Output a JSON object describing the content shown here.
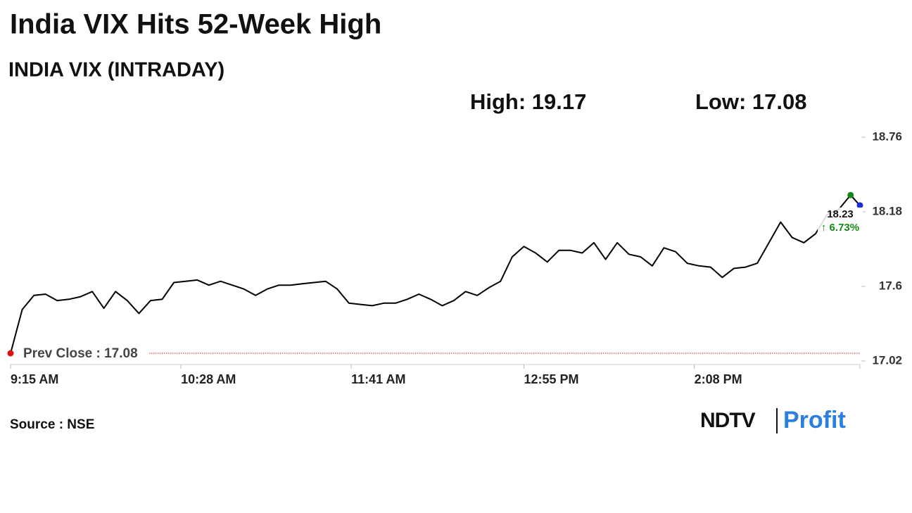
{
  "chart_data": {
    "type": "line",
    "title": "India VIX Hits 52-Week High",
    "subtitle": "INDIA VIX (INTRADAY)",
    "high_label": "High: 19.17",
    "low_label": "Low: 17.08",
    "prev_close": 17.08,
    "prev_close_label": "Prev Close : 17.08",
    "prev_close_color": "#d42020",
    "change_label": "↑ 6.73%",
    "change_color": "#138a13",
    "source": "Source : NSE",
    "logo": [
      "NDTV",
      "Profit"
    ],
    "x": [
      "9:15 AM",
      "9:20 AM",
      "9:25 AM",
      "9:30 AM",
      "9:35 AM",
      "9:40 AM",
      "9:45 AM",
      "9:50 AM",
      "9:55 AM",
      "10:00 AM",
      "10:05 AM",
      "10:10 AM",
      "10:15 AM",
      "10:20 AM",
      "10:25 AM",
      "10:30 AM",
      "10:35 AM",
      "10:40 AM",
      "10:45 AM",
      "10:50 AM",
      "10:55 AM",
      "11:00 AM",
      "11:05 AM",
      "11:10 AM",
      "11:15 AM",
      "11:20 AM",
      "11:25 AM",
      "11:30 AM",
      "11:35 AM",
      "11:40 AM",
      "11:45 AM",
      "11:50 AM",
      "11:55 AM",
      "12:00 PM",
      "12:05 PM",
      "12:10 PM",
      "12:15 PM",
      "12:20 PM",
      "12:25 PM",
      "12:30 PM",
      "12:35 PM",
      "12:40 PM",
      "12:45 PM",
      "12:50 PM",
      "12:55 PM",
      "1:00 PM",
      "1:05 PM",
      "1:10 PM",
      "1:15 PM",
      "1:20 PM",
      "1:25 PM",
      "1:30 PM",
      "1:35 PM",
      "1:40 PM",
      "1:45 PM",
      "1:50 PM",
      "1:55 PM",
      "2:00 PM",
      "2:05 PM",
      "2:10 PM",
      "2:15 PM",
      "2:20 PM",
      "2:25 PM",
      "2:30 PM",
      "2:35 PM",
      "2:40 PM",
      "2:45 PM",
      "2:50 PM",
      "2:55 PM",
      "3:00 PM",
      "3:05 PM",
      "3:10 PM",
      "3:15 PM",
      "3:19 PM"
    ],
    "series": [
      {
        "name": "India VIX",
        "color": "#000000",
        "values": [
          17.08,
          17.42,
          17.53,
          17.54,
          17.49,
          17.5,
          17.52,
          17.56,
          17.43,
          17.56,
          17.49,
          17.39,
          17.49,
          17.5,
          17.63,
          17.64,
          17.65,
          17.61,
          17.64,
          17.61,
          17.58,
          17.53,
          17.58,
          17.61,
          17.61,
          17.62,
          17.63,
          17.64,
          17.58,
          17.47,
          17.46,
          17.45,
          17.47,
          17.47,
          17.5,
          17.54,
          17.5,
          17.45,
          17.49,
          17.56,
          17.53,
          17.59,
          17.64,
          17.83,
          17.91,
          17.86,
          17.79,
          17.88,
          17.88,
          17.86,
          17.94,
          17.81,
          17.94,
          17.85,
          17.83,
          17.76,
          17.9,
          17.87,
          17.78,
          17.76,
          17.75,
          17.67,
          17.74,
          17.75,
          17.78,
          17.94,
          18.1,
          17.98,
          17.94,
          18.01,
          18.16,
          18.2,
          18.31,
          18.23
        ]
      }
    ],
    "marker_colors": {
      "start": "#e01010",
      "high": "#138a13",
      "last": "#1c2fd6"
    },
    "xlim": [
      "9:15 AM",
      "3:19 PM"
    ],
    "xticks": [
      "9:15 AM",
      "10:28 AM",
      "11:41 AM",
      "12:55 PM",
      "2:08 PM"
    ],
    "ylim": [
      17.02,
      18.76
    ],
    "yticks": [
      17.02,
      17.6,
      18.18,
      18.76
    ],
    "grid": false
  }
}
